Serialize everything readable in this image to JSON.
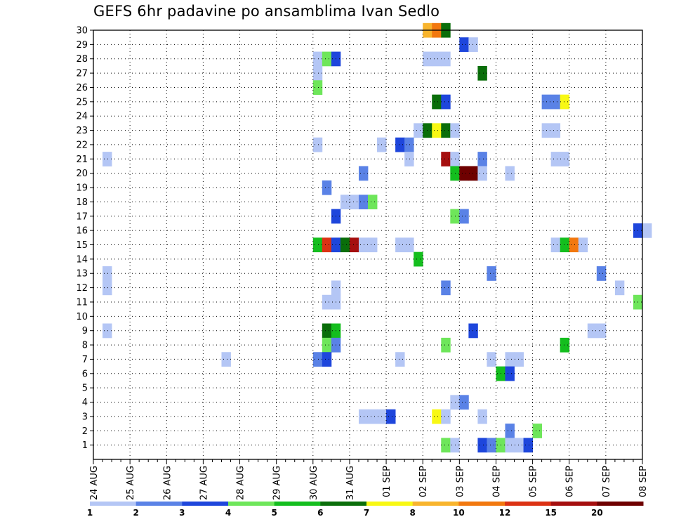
{
  "chart_data": {
    "type": "heatmap",
    "title": "GEFS 6hr padavine po ansamblima Ivan Sedlo",
    "xlabel": "",
    "ylabel": "",
    "x_tick_labels": [
      "24 AUG",
      "25 AUG",
      "26 AUG",
      "27 AUG",
      "28 AUG",
      "29 AUG",
      "30 AUG",
      "31 AUG",
      "01 SEP",
      "02 SEP",
      "03 SEP",
      "04 SEP",
      "05 SEP",
      "06 SEP",
      "07 SEP",
      "08 SEP"
    ],
    "x_unit": "6-hour step (4 per day), 0 = 24 AUG 00Z",
    "xlim": [
      0,
      60
    ],
    "y_tick_labels": [
      "1",
      "2",
      "3",
      "4",
      "5",
      "6",
      "7",
      "8",
      "9",
      "10",
      "11",
      "12",
      "13",
      "14",
      "15",
      "16",
      "17",
      "18",
      "19",
      "20",
      "21",
      "22",
      "23",
      "24",
      "25",
      "26",
      "27",
      "28",
      "29",
      "30"
    ],
    "ylim": [
      0,
      30
    ],
    "grid": true,
    "color_scale": {
      "labels": [
        "1",
        "2",
        "3",
        "4",
        "5",
        "6",
        "7",
        "8",
        "10",
        "12",
        "15",
        "20"
      ],
      "colors": [
        "#b4c6f5",
        "#5a82e6",
        "#1e46dc",
        "#6ee65a",
        "#14be1e",
        "#0a6e0a",
        "#f8f814",
        "#f8b42d",
        "#f2780f",
        "#dc3214",
        "#a50f0f",
        "#6e0000"
      ]
    },
    "cells": [
      {
        "member": 30,
        "t": 36,
        "v": 8
      },
      {
        "member": 30,
        "t": 37,
        "v": 10
      },
      {
        "member": 30,
        "t": 38,
        "v": 6
      },
      {
        "member": 29,
        "t": 40,
        "v": 3
      },
      {
        "member": 29,
        "t": 41,
        "v": 1
      },
      {
        "member": 28,
        "t": 24,
        "v": 1
      },
      {
        "member": 28,
        "t": 25,
        "v": 4
      },
      {
        "member": 28,
        "t": 26,
        "v": 3
      },
      {
        "member": 28,
        "t": 36,
        "v": 1
      },
      {
        "member": 28,
        "t": 37,
        "v": 1
      },
      {
        "member": 28,
        "t": 38,
        "v": 1
      },
      {
        "member": 27,
        "t": 24,
        "v": 1
      },
      {
        "member": 27,
        "t": 42,
        "v": 6
      },
      {
        "member": 26,
        "t": 24,
        "v": 4
      },
      {
        "member": 25,
        "t": 37,
        "v": 6
      },
      {
        "member": 25,
        "t": 38,
        "v": 3
      },
      {
        "member": 25,
        "t": 49,
        "v": 2
      },
      {
        "member": 25,
        "t": 50,
        "v": 2
      },
      {
        "member": 25,
        "t": 51,
        "v": 7
      },
      {
        "member": 23,
        "t": 35,
        "v": 1
      },
      {
        "member": 23,
        "t": 36,
        "v": 6
      },
      {
        "member": 23,
        "t": 37,
        "v": 7
      },
      {
        "member": 23,
        "t": 38,
        "v": 6
      },
      {
        "member": 23,
        "t": 39,
        "v": 1
      },
      {
        "member": 23,
        "t": 49,
        "v": 1
      },
      {
        "member": 23,
        "t": 50,
        "v": 1
      },
      {
        "member": 22,
        "t": 24,
        "v": 1
      },
      {
        "member": 22,
        "t": 31,
        "v": 1
      },
      {
        "member": 22,
        "t": 33,
        "v": 3
      },
      {
        "member": 22,
        "t": 34,
        "v": 2
      },
      {
        "member": 21,
        "t": 1,
        "v": 1
      },
      {
        "member": 21,
        "t": 34,
        "v": 1
      },
      {
        "member": 21,
        "t": 38,
        "v": 15
      },
      {
        "member": 21,
        "t": 39,
        "v": 1
      },
      {
        "member": 21,
        "t": 42,
        "v": 2
      },
      {
        "member": 21,
        "t": 50,
        "v": 1
      },
      {
        "member": 21,
        "t": 51,
        "v": 1
      },
      {
        "member": 20,
        "t": 29,
        "v": 2
      },
      {
        "member": 20,
        "t": 39,
        "v": 5
      },
      {
        "member": 20,
        "t": 40,
        "v": 20
      },
      {
        "member": 20,
        "t": 41,
        "v": 20
      },
      {
        "member": 20,
        "t": 42,
        "v": 1
      },
      {
        "member": 20,
        "t": 45,
        "v": 1
      },
      {
        "member": 19,
        "t": 25,
        "v": 2
      },
      {
        "member": 18,
        "t": 27,
        "v": 1
      },
      {
        "member": 18,
        "t": 28,
        "v": 1
      },
      {
        "member": 18,
        "t": 29,
        "v": 2
      },
      {
        "member": 18,
        "t": 30,
        "v": 4
      },
      {
        "member": 17,
        "t": 26,
        "v": 3
      },
      {
        "member": 17,
        "t": 39,
        "v": 4
      },
      {
        "member": 17,
        "t": 40,
        "v": 2
      },
      {
        "member": 16,
        "t": 59,
        "v": 3
      },
      {
        "member": 16,
        "t": 60,
        "v": 1
      },
      {
        "member": 15,
        "t": 24,
        "v": 5
      },
      {
        "member": 15,
        "t": 25,
        "v": 12
      },
      {
        "member": 15,
        "t": 26,
        "v": 3
      },
      {
        "member": 15,
        "t": 27,
        "v": 6
      },
      {
        "member": 15,
        "t": 28,
        "v": 15
      },
      {
        "member": 15,
        "t": 29,
        "v": 1
      },
      {
        "member": 15,
        "t": 30,
        "v": 1
      },
      {
        "member": 15,
        "t": 33,
        "v": 1
      },
      {
        "member": 15,
        "t": 34,
        "v": 1
      },
      {
        "member": 15,
        "t": 50,
        "v": 1
      },
      {
        "member": 15,
        "t": 51,
        "v": 5
      },
      {
        "member": 15,
        "t": 52,
        "v": 10
      },
      {
        "member": 15,
        "t": 53,
        "v": 1
      },
      {
        "member": 14,
        "t": 35,
        "v": 5
      },
      {
        "member": 13,
        "t": 1,
        "v": 1
      },
      {
        "member": 13,
        "t": 43,
        "v": 2
      },
      {
        "member": 13,
        "t": 55,
        "v": 2
      },
      {
        "member": 12,
        "t": 1,
        "v": 1
      },
      {
        "member": 12,
        "t": 26,
        "v": 1
      },
      {
        "member": 12,
        "t": 38,
        "v": 2
      },
      {
        "member": 12,
        "t": 57,
        "v": 1
      },
      {
        "member": 11,
        "t": 25,
        "v": 1
      },
      {
        "member": 11,
        "t": 26,
        "v": 1
      },
      {
        "member": 11,
        "t": 59,
        "v": 4
      },
      {
        "member": 9,
        "t": 1,
        "v": 1
      },
      {
        "member": 9,
        "t": 25,
        "v": 6
      },
      {
        "member": 9,
        "t": 26,
        "v": 5
      },
      {
        "member": 9,
        "t": 41,
        "v": 3
      },
      {
        "member": 9,
        "t": 54,
        "v": 1
      },
      {
        "member": 9,
        "t": 55,
        "v": 1
      },
      {
        "member": 8,
        "t": 25,
        "v": 4
      },
      {
        "member": 8,
        "t": 26,
        "v": 2
      },
      {
        "member": 8,
        "t": 38,
        "v": 4
      },
      {
        "member": 8,
        "t": 51,
        "v": 5
      },
      {
        "member": 7,
        "t": 14,
        "v": 1
      },
      {
        "member": 7,
        "t": 24,
        "v": 2
      },
      {
        "member": 7,
        "t": 25,
        "v": 3
      },
      {
        "member": 7,
        "t": 33,
        "v": 1
      },
      {
        "member": 7,
        "t": 43,
        "v": 1
      },
      {
        "member": 7,
        "t": 45,
        "v": 1
      },
      {
        "member": 7,
        "t": 46,
        "v": 1
      },
      {
        "member": 6,
        "t": 44,
        "v": 5
      },
      {
        "member": 6,
        "t": 45,
        "v": 3
      },
      {
        "member": 4,
        "t": 39,
        "v": 1
      },
      {
        "member": 4,
        "t": 40,
        "v": 2
      },
      {
        "member": 3,
        "t": 29,
        "v": 1
      },
      {
        "member": 3,
        "t": 30,
        "v": 1
      },
      {
        "member": 3,
        "t": 31,
        "v": 1
      },
      {
        "member": 3,
        "t": 32,
        "v": 3
      },
      {
        "member": 3,
        "t": 37,
        "v": 7
      },
      {
        "member": 3,
        "t": 38,
        "v": 1
      },
      {
        "member": 3,
        "t": 42,
        "v": 1
      },
      {
        "member": 2,
        "t": 45,
        "v": 2
      },
      {
        "member": 2,
        "t": 48,
        "v": 4
      },
      {
        "member": 1,
        "t": 38,
        "v": 4
      },
      {
        "member": 1,
        "t": 39,
        "v": 1
      },
      {
        "member": 1,
        "t": 42,
        "v": 3
      },
      {
        "member": 1,
        "t": 43,
        "v": 2
      },
      {
        "member": 1,
        "t": 44,
        "v": 4
      },
      {
        "member": 1,
        "t": 45,
        "v": 1
      },
      {
        "member": 1,
        "t": 46,
        "v": 1
      },
      {
        "member": 1,
        "t": 47,
        "v": 3
      }
    ]
  }
}
